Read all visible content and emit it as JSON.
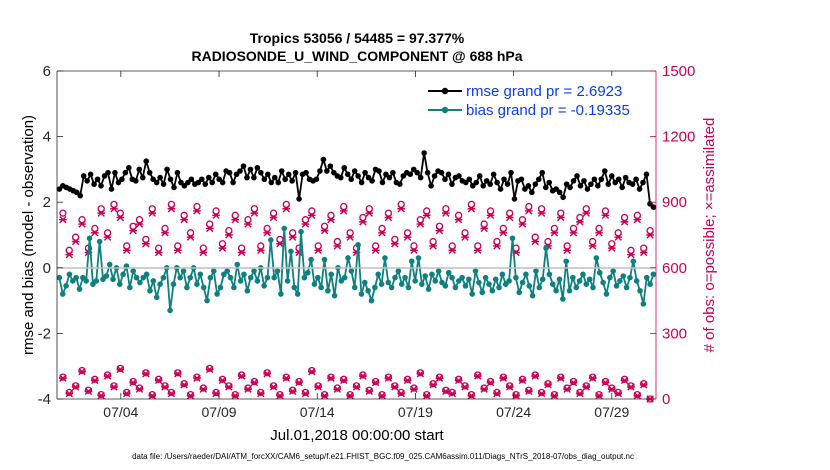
{
  "chart_data": {
    "type": "line",
    "title_line1": "Tropics 53056 / 54485 = 97.377%",
    "title_line2": "RADIOSONDE_U_WIND_COMPONENT @ 688 hPa",
    "xlabel": "Jul.01,2018 00:00:00 start",
    "ylabel_left": "rmse and bias (model - observation)",
    "ylabel_right": "# of obs: o=possible; ×=assimilated",
    "footnote": "data file: /Users/raeder/DAI/ATM_forcXX/CAM6_setup/f.e21.FHIST_BGC.f09_025.CAM6assim.011/Diags_NTrS_2018-07/obs_diag_output.nc",
    "ylim_left": [
      -4,
      6
    ],
    "ylim_right": [
      0,
      1500
    ],
    "xlim": [
      0.75,
      31.25
    ],
    "yticks_left": [
      "-4",
      "-2",
      "0",
      "2",
      "4",
      "6"
    ],
    "yticks_right": [
      "0",
      "300",
      "600",
      "900",
      "1200",
      "1500"
    ],
    "xtick_labels": [
      "07/04",
      "07/09",
      "07/14",
      "07/19",
      "07/24",
      "07/29"
    ],
    "xtick_days": [
      4,
      9,
      14,
      19,
      24,
      29
    ],
    "step_days": 0.25,
    "colors": {
      "rmse": "#000000",
      "bias": "#0e8080",
      "obs": "#cc0052",
      "legend_text": "#0a3ee6",
      "zero_line": "#bfbfbf"
    },
    "series": [
      {
        "name": "rmse",
        "legend": "rmse grand pr = 2.6923",
        "values": [
          2.4,
          2.5,
          2.45,
          2.4,
          2.35,
          2.3,
          2.2,
          2.8,
          2.65,
          2.85,
          2.55,
          2.7,
          2.5,
          2.8,
          2.9,
          2.4,
          2.9,
          2.6,
          2.7,
          2.9,
          3.05,
          2.7,
          2.65,
          3.0,
          2.75,
          3.25,
          2.9,
          2.7,
          2.6,
          2.75,
          2.55,
          3.0,
          2.7,
          2.45,
          2.9,
          2.6,
          2.5,
          2.6,
          2.7,
          2.55,
          2.6,
          2.7,
          2.55,
          2.75,
          2.6,
          2.85,
          2.7,
          2.6,
          2.95,
          2.9,
          2.6,
          2.85,
          2.95,
          3.1,
          2.75,
          3.0,
          2.75,
          3.05,
          2.9,
          2.7,
          2.85,
          2.6,
          2.75,
          2.6,
          2.95,
          2.7,
          2.85,
          2.65,
          2.9,
          2.1,
          2.85,
          2.9,
          2.7,
          2.65,
          2.7,
          2.95,
          3.3,
          2.95,
          3.1,
          2.9,
          2.8,
          2.75,
          3.05,
          2.85,
          2.7,
          2.95,
          2.8,
          2.6,
          2.9,
          2.75,
          2.65,
          3.0,
          2.95,
          2.6,
          2.85,
          2.75,
          2.9,
          2.6,
          2.55,
          2.8,
          2.9,
          2.85,
          3.0,
          2.9,
          2.75,
          3.5,
          2.9,
          2.5,
          2.8,
          2.95,
          2.9,
          2.7,
          2.85,
          2.55,
          2.75,
          2.8,
          2.65,
          2.6,
          2.7,
          2.5,
          2.6,
          2.8,
          2.5,
          2.65,
          2.55,
          2.85,
          2.6,
          2.4,
          2.7,
          2.55,
          2.9,
          2.1,
          2.65,
          2.7,
          2.4,
          2.5,
          2.3,
          2.55,
          2.7,
          2.9,
          2.45,
          2.6,
          2.35,
          2.4,
          2.3,
          2.15,
          2.55,
          2.45,
          2.65,
          2.8,
          2.5,
          2.65,
          2.4,
          2.55,
          2.7,
          2.5,
          2.7,
          2.95,
          2.55,
          2.8,
          2.6,
          2.7,
          2.45,
          2.75,
          2.6,
          2.55,
          2.7,
          2.4,
          2.6,
          2.85,
          1.95,
          1.85
        ]
      },
      {
        "name": "bias",
        "legend": "bias grand pr = -0.19335",
        "values": [
          -0.3,
          -0.8,
          -0.55,
          -0.2,
          -0.4,
          -0.3,
          -0.65,
          -0.3,
          -0.4,
          0.9,
          -0.5,
          -0.4,
          0.8,
          -0.35,
          -0.25,
          0.1,
          -0.35,
          0.0,
          -0.5,
          -0.2,
          0.05,
          -0.6,
          -0.1,
          -0.3,
          -0.45,
          -0.3,
          -0.2,
          -0.7,
          -0.4,
          -0.9,
          -0.5,
          -0.3,
          0.0,
          -1.3,
          -0.5,
          0.0,
          -0.3,
          -0.1,
          -0.6,
          -0.3,
          0.0,
          -0.5,
          -0.2,
          -0.6,
          -1.0,
          -0.3,
          -0.1,
          -0.8,
          -0.6,
          -0.2,
          -0.1,
          -0.3,
          -0.6,
          0.1,
          -0.4,
          -0.2,
          -0.7,
          -0.3,
          -0.1,
          -0.4,
          0.0,
          -0.55,
          -0.3,
          0.85,
          -0.3,
          -0.1,
          -0.8,
          1.2,
          -0.4,
          0.5,
          -0.6,
          -0.8,
          1.1,
          -0.3,
          -0.15,
          0.25,
          -0.5,
          -0.3,
          -0.6,
          0.25,
          -0.7,
          -0.2,
          -0.85,
          0.0,
          -0.4,
          -0.3,
          0.3,
          -0.1,
          -0.6,
          0.7,
          -0.8,
          -0.45,
          -0.7,
          -1.0,
          -0.6,
          -0.2,
          -0.5,
          0.3,
          -0.45,
          -0.6,
          -0.3,
          -0.1,
          -0.5,
          -0.3,
          -0.6,
          0.2,
          -0.4,
          0.3,
          -0.5,
          -0.25,
          -0.65,
          -0.2,
          -0.4,
          -0.1,
          -0.45,
          -0.55,
          -0.15,
          -0.3,
          -0.6,
          -0.4,
          -0.3,
          -0.55,
          -0.35,
          -0.8,
          -0.1,
          -0.45,
          -0.75,
          -0.3,
          -0.5,
          -0.7,
          -0.35,
          -0.6,
          -0.2,
          -0.5,
          -0.4,
          0.9,
          -0.3,
          -0.75,
          -0.45,
          -0.2,
          -0.55,
          -0.85,
          -0.1,
          -0.6,
          -0.35,
          0.6,
          -0.2,
          -0.5,
          -0.7,
          -0.35,
          -0.95,
          0.2,
          -0.7,
          -0.3,
          -0.6,
          -0.4,
          -0.2,
          -0.5,
          -0.35,
          -0.6,
          0.3,
          -0.15,
          -0.45,
          -0.8,
          -0.3,
          -0.1,
          -0.55,
          -0.4,
          -0.25,
          -0.6,
          -0.3,
          0.2,
          -0.4,
          -0.7,
          -1.1,
          -0.3,
          -0.5,
          -0.2
        ]
      },
      {
        "name": "obs_possible_high",
        "axis": "right",
        "marker": "o",
        "values": [
          850,
          680,
          740,
          820,
          690,
          780,
          870,
          760,
          890,
          850,
          700,
          790,
          820,
          730,
          870,
          690,
          780,
          890,
          700,
          840,
          760,
          880,
          690,
          800,
          860,
          710,
          770,
          840,
          690,
          820,
          870,
          700,
          780,
          850,
          730,
          890,
          760,
          690,
          820,
          860,
          700,
          790,
          840,
          720,
          880,
          760,
          690,
          830,
          870,
          700,
          780,
          850,
          730,
          890,
          760,
          700,
          820,
          860,
          720,
          790,
          870,
          700,
          840,
          760,
          890,
          700,
          800,
          860,
          720,
          780,
          850,
          690,
          820,
          880,
          740,
          870,
          720,
          780,
          850,
          700,
          780,
          830,
          870,
          720,
          780,
          860,
          710,
          760,
          830,
          680,
          840,
          690,
          770
        ]
      },
      {
        "name": "obs_assimilated_high",
        "axis": "right",
        "marker": "x",
        "values": [
          820,
          660,
          720,
          800,
          670,
          760,
          850,
          740,
          870,
          830,
          680,
          770,
          800,
          710,
          850,
          670,
          760,
          870,
          680,
          820,
          740,
          860,
          670,
          780,
          840,
          690,
          750,
          820,
          670,
          800,
          850,
          680,
          760,
          830,
          710,
          870,
          740,
          670,
          800,
          840,
          680,
          770,
          820,
          700,
          860,
          740,
          670,
          810,
          850,
          680,
          760,
          830,
          710,
          870,
          740,
          680,
          800,
          840,
          700,
          770,
          850,
          680,
          820,
          740,
          870,
          680,
          780,
          840,
          700,
          760,
          830,
          670,
          800,
          860,
          720,
          850,
          700,
          760,
          830,
          680,
          760,
          810,
          850,
          700,
          760,
          840,
          690,
          740,
          810,
          660,
          820,
          670,
          750
        ]
      },
      {
        "name": "obs_possible_low",
        "axis": "right",
        "marker": "o",
        "values": [
          100,
          30,
          60,
          130,
          40,
          90,
          20,
          110,
          60,
          140,
          30,
          80,
          50,
          120,
          20,
          90,
          60,
          30,
          120,
          70,
          20,
          100,
          50,
          140,
          30,
          90,
          60,
          20,
          110,
          50,
          80,
          30,
          120,
          60,
          20,
          100,
          40,
          80,
          30,
          130,
          60,
          20,
          100,
          50,
          90,
          20,
          60,
          110,
          40,
          80,
          20,
          100,
          60,
          30,
          90,
          50,
          120,
          20,
          70,
          100,
          40,
          30,
          90,
          60,
          20,
          110,
          50,
          80,
          30,
          100,
          60,
          20,
          90,
          40,
          110,
          30,
          70,
          20,
          100,
          50,
          80,
          30,
          60,
          100,
          20,
          80,
          50,
          30,
          90,
          60,
          20,
          70,
          0
        ]
      },
      {
        "name": "obs_assimilated_low",
        "axis": "right",
        "marker": "x",
        "values": [
          95,
          25,
          55,
          125,
          35,
          85,
          15,
          105,
          55,
          135,
          25,
          75,
          45,
          115,
          15,
          85,
          55,
          25,
          115,
          65,
          15,
          95,
          45,
          135,
          25,
          85,
          55,
          15,
          105,
          45,
          75,
          25,
          115,
          55,
          15,
          95,
          35,
          75,
          25,
          125,
          55,
          15,
          95,
          45,
          85,
          15,
          55,
          105,
          35,
          75,
          15,
          95,
          55,
          25,
          85,
          45,
          115,
          15,
          65,
          95,
          35,
          25,
          85,
          55,
          15,
          105,
          45,
          75,
          25,
          95,
          55,
          15,
          85,
          35,
          105,
          25,
          65,
          15,
          95,
          45,
          75,
          25,
          55,
          95,
          15,
          75,
          45,
          25,
          85,
          55,
          15,
          65,
          0
        ]
      }
    ]
  }
}
